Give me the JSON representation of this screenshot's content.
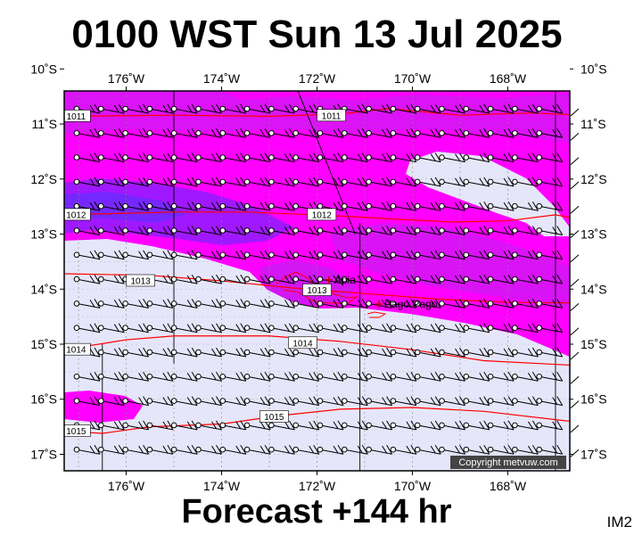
{
  "title": "0100 WST Sun 13 Jul 2025",
  "footer": "Forecast +144 hr",
  "corner_label": "IM2",
  "copyright": "Copyright metvuw.com",
  "colors": {
    "shade_light": "#e6e6fa",
    "shade_magenta": "#ff00ff",
    "shade_purple": "#c020f0",
    "shade_violet": "#8020ff",
    "shade_blue": "#6a2cff",
    "isobar": "#ff0000",
    "coast": "#ff0000",
    "grid": "#000000"
  },
  "map": {
    "lon_range": [
      -177.3,
      -166.7
    ],
    "lat_range": [
      -17.3,
      -10.4
    ],
    "lon_ticks": [
      {
        "value": -176,
        "label": "176˚W"
      },
      {
        "value": -174,
        "label": "174˚W"
      },
      {
        "value": -172,
        "label": "172˚W"
      },
      {
        "value": -170,
        "label": "170˚W"
      },
      {
        "value": -168,
        "label": "168˚W"
      }
    ],
    "lat_ticks": [
      {
        "value": -10,
        "label": "10˚S"
      },
      {
        "value": -11,
        "label": "11˚S"
      },
      {
        "value": -12,
        "label": "12˚S"
      },
      {
        "value": -13,
        "label": "13˚S"
      },
      {
        "value": -14,
        "label": "14˚S"
      },
      {
        "value": -15,
        "label": "15˚S"
      },
      {
        "value": -16,
        "label": "16˚S"
      },
      {
        "value": -17,
        "label": "17˚S"
      }
    ],
    "isobars": [
      {
        "label": "1011",
        "points": [
          [
            -177.3,
            -10.86
          ],
          [
            -175,
            -10.84
          ],
          [
            -173,
            -10.86
          ],
          [
            -171.5,
            -10.82
          ],
          [
            -170.5,
            -10.72
          ],
          [
            -169,
            -10.84
          ],
          [
            -167.5,
            -10.8
          ],
          [
            -166.7,
            -10.83
          ]
        ],
        "label_positions": [
          [
            -177.05,
            -10.86
          ],
          [
            -171.7,
            -10.85
          ]
        ]
      },
      {
        "label": "1012",
        "points": [
          [
            -177.3,
            -12.65
          ],
          [
            -175,
            -12.6
          ],
          [
            -173.5,
            -12.6
          ],
          [
            -172,
            -12.65
          ],
          [
            -170.5,
            -12.72
          ],
          [
            -169.2,
            -12.78
          ],
          [
            -168,
            -12.76
          ],
          [
            -167,
            -12.65
          ],
          [
            -166.7,
            -12.7
          ]
        ],
        "label_positions": [
          [
            -177.05,
            -12.65
          ],
          [
            -171.9,
            -12.65
          ]
        ]
      },
      {
        "label": "1013",
        "points": [
          [
            -177.3,
            -13.72
          ],
          [
            -175.5,
            -13.75
          ],
          [
            -174,
            -13.85
          ],
          [
            -172.5,
            -13.98
          ],
          [
            -171,
            -14.08
          ],
          [
            -169.5,
            -14.18
          ],
          [
            -168,
            -14.24
          ],
          [
            -166.7,
            -14.25
          ]
        ],
        "label_positions": [
          [
            -175.7,
            -13.85
          ],
          [
            -172.0,
            -14.02
          ]
        ]
      },
      {
        "label": "1014",
        "points": [
          [
            -177.3,
            -15.1
          ],
          [
            -176,
            -14.92
          ],
          [
            -175,
            -14.85
          ],
          [
            -173,
            -14.85
          ],
          [
            -171.5,
            -14.95
          ],
          [
            -170,
            -15.1
          ],
          [
            -168.5,
            -15.3
          ],
          [
            -166.7,
            -15.38
          ]
        ],
        "label_positions": [
          [
            -177.05,
            -15.1
          ],
          [
            -172.3,
            -14.98
          ]
        ]
      },
      {
        "label": "1015",
        "points": [
          [
            -177.3,
            -16.58
          ],
          [
            -176.5,
            -16.62
          ],
          [
            -175.5,
            -16.5
          ],
          [
            -174,
            -16.45
          ],
          [
            -172.8,
            -16.3
          ],
          [
            -171.5,
            -16.18
          ],
          [
            -170,
            -16.15
          ],
          [
            -168.5,
            -16.22
          ],
          [
            -166.7,
            -16.4
          ]
        ],
        "label_positions": [
          [
            -177.05,
            -16.58
          ],
          [
            -172.9,
            -16.32
          ]
        ]
      }
    ],
    "places": [
      {
        "name": "Apia",
        "lon": -171.75,
        "lat": -13.83
      },
      {
        "name": "Pago Pago",
        "lon": -170.7,
        "lat": -14.27
      }
    ]
  }
}
